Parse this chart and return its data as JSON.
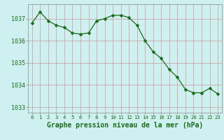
{
  "x": [
    0,
    1,
    2,
    3,
    4,
    5,
    6,
    7,
    8,
    9,
    10,
    11,
    12,
    13,
    14,
    15,
    16,
    17,
    18,
    19,
    20,
    21,
    22,
    23
  ],
  "y": [
    1036.8,
    1037.3,
    1036.9,
    1036.7,
    1036.6,
    1036.35,
    1036.3,
    1036.35,
    1036.9,
    1037.0,
    1037.15,
    1037.15,
    1037.05,
    1036.7,
    1036.0,
    1035.5,
    1035.2,
    1034.7,
    1034.35,
    1033.8,
    1033.65,
    1033.65,
    1033.85,
    1033.6
  ],
  "line_color": "#1a6b1a",
  "marker": "D",
  "marker_size": 2.5,
  "bg_color": "#cff0f0",
  "grid_color": "#c8a8a8",
  "xlabel": "Graphe pression niveau de la mer (hPa)",
  "xlabel_color": "#1a6b1a",
  "tick_color": "#1a6b1a",
  "ytick_labels": [
    1033,
    1034,
    1035,
    1036,
    1037
  ],
  "ylim": [
    1032.75,
    1037.65
  ],
  "xlim": [
    -0.5,
    23.5
  ],
  "xtick_labels": [
    "0",
    "1",
    "2",
    "3",
    "4",
    "5",
    "6",
    "7",
    "8",
    "9",
    "10",
    "11",
    "12",
    "13",
    "14",
    "15",
    "16",
    "17",
    "18",
    "19",
    "20",
    "21",
    "22",
    "23"
  ]
}
